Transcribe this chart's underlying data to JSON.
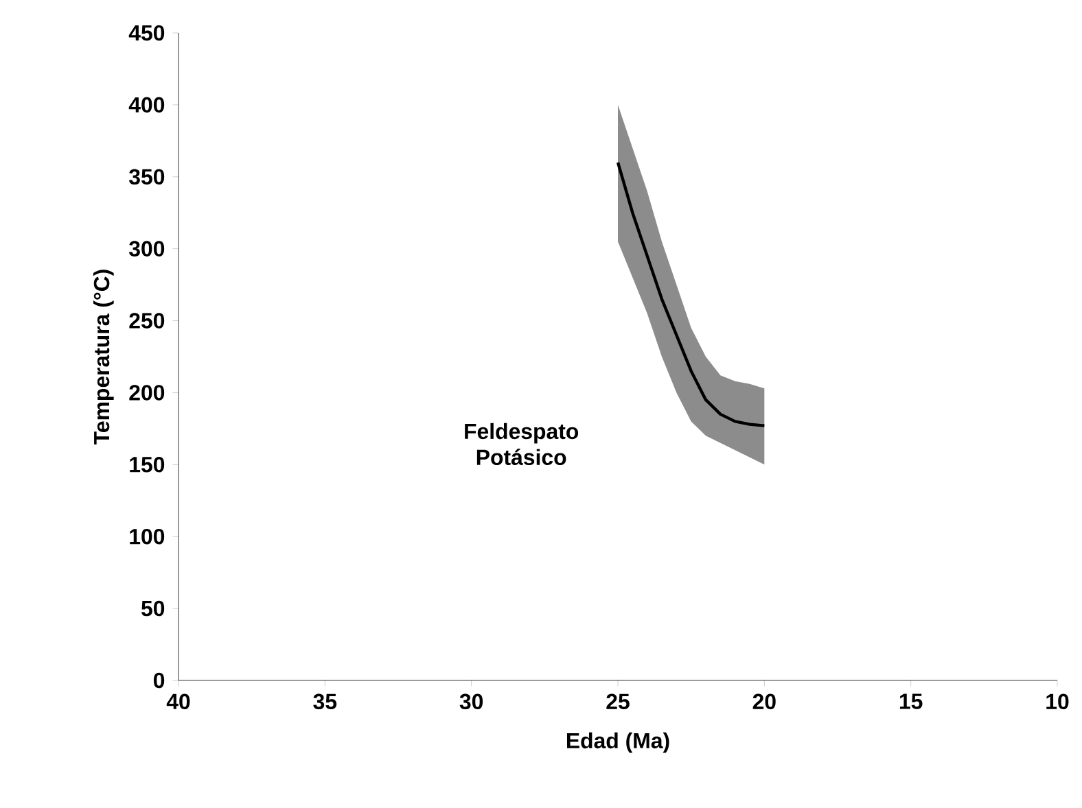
{
  "chart_data": {
    "type": "line",
    "xlabel": "Edad (Ma)",
    "ylabel": "Temperatura (°C)",
    "x": [
      25,
      24.5,
      24,
      23.5,
      23,
      22.5,
      22,
      21.5,
      21,
      20.5,
      20
    ],
    "series": [
      {
        "color": "#000000",
        "values": [
          360,
          325,
          295,
          265,
          240,
          215,
          195,
          185,
          180,
          178,
          177
        ],
        "lower": [
          305,
          280,
          255,
          225,
          200,
          180,
          170,
          165,
          160,
          155,
          150
        ],
        "upper": [
          400,
          370,
          340,
          305,
          275,
          245,
          225,
          212,
          208,
          206,
          203
        ]
      }
    ],
    "xlim": [
      40,
      10
    ],
    "xticks": [
      40,
      35,
      30,
      25,
      20,
      15,
      10
    ],
    "ylim": [
      0,
      450
    ],
    "yticks": [
      0,
      50,
      100,
      150,
      200,
      250,
      300,
      350,
      400,
      450
    ],
    "annotations": [
      "Feldespato Potásico"
    ]
  }
}
